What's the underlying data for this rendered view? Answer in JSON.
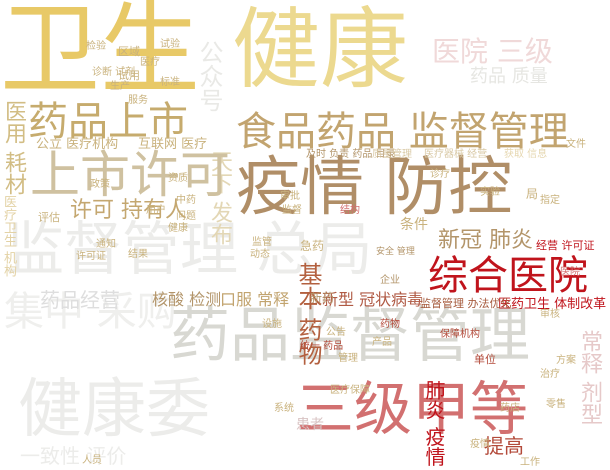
{
  "palette": {
    "gold": "#e6c66a",
    "gold_light": "#ecd98f",
    "brown": "#b3956a",
    "khaki": "#c9b27d",
    "red_dark": "#c0141c",
    "red": "#d54a4a",
    "rose": "#e3a0a0",
    "pale_rose": "#f1d6d6",
    "gray": "#c9c9c4",
    "light_gray": "#e9e9e6",
    "faint": "#f1f1ef"
  },
  "words": {
    "weisheng": "卫生",
    "jiankang": "健康",
    "yaopin_shangshi": "药品上市",
    "shipin_yaopin_jiandu": "食品药品 监督管理",
    "yiqing_fangkong": "疫情 防控",
    "shangshi_xuke": "上市许可",
    "jiandu_guanli_zongju": "监督管理 总局",
    "zonghe_yiyuan": "综合医院",
    "yaopin_jiandu_guanli": "药品监督管理",
    "sanji_jiadeng": "三级甲等",
    "jiankang_wei": "健康委",
    "jizhong_caigou": "集中 采购",
    "yiyuan_sanji": "医院 三级",
    "xinguan_feiyan": "新冠 肺炎",
    "xinxing_guanzhuang": "新型 冠状病毒",
    "hesuan_jiance": "核酸 检测",
    "koufu_changshi": "口服 常释",
    "jiben_yaowu": "基本 药物",
    "xuke_chiyouren": "许可 持有人",
    "yiyao_weisheng_tizhi": "医药卫生 体制改革",
    "jiandu_banfa": "监督管理 办法优化",
    "tigao": "提高",
    "yiyong_haocai": "医用 耗材",
    "gonggong_yiliao": "公立 医疗机构",
    "hulianwang_yiliao": "互联网 医疗",
    "gonghao": "公众号",
    "tianxia_fabu": "天下 发布",
    "yaopin_zhiliang": "药品 质量",
    "yaopin_jingying": "药品经营",
    "huanzhe": "患者",
    "yizhixing_pingjia": "一致性 评价",
    "feiyan_yiqing": "肺炎 疫情",
    "changshi_jixing": "常释 剂型",
    "jiyao": "急药",
    "shiyong": "试用",
    "tiaojian": "条件",
    "jingying_xukezheng": "经营 许可证",
    "jishi_fuze": "及时 负责 药品 目录",
    "zhenduan_shiji": "诊断 试剂",
    "yiyao_zhenduan": "医疗器械 经营",
    "quyu": "区域",
    "anquan": "安全 管理",
    "huoqu": "获取 信息",
    "yiliao_baozhang": "医疗保障",
    "weisheng_jiankang": "医疗卫生 机构",
    "pinggu": "评估",
    "danwei": "单位",
    "tongyi": "统一 药品",
    "xinyao": "新药",
    "shenhe": "审核",
    "shengchan": "生产",
    "yiyuan": "医院",
    "sheshi": "设施",
    "lingshou": "零售",
    "zhiliang_guanli": "质量管理",
    "zhongyao": "中药",
    "dongtai": "动态",
    "yonghu": "用户",
    "fuwu": "服务",
    "jiandu": "监督",
    "xukezheng": "许可证",
    "yaodian": "药店",
    "jianyan": "检验",
    "tongzhi": "通知",
    "chanpin": "产品",
    "zhiding": "指定",
    "jiegou": "结构",
    "gonggao": "公告",
    "shiyan": "试验",
    "yiliao": "医疗",
    "baozhang": "保障",
    "jigou": "机构",
    "qiye": "企业",
    "yaowu": "药物",
    "zhiliao": "治疗",
    "fangan": "方案",
    "zhengce": "政策",
    "biaozhun": "标准",
    "guanli": "管理",
    "jianguan": "监管",
    "zhenliao": "诊疗",
    "ju": "局",
    "shiyan2": "实验",
    "xitong": "系统",
    "zizhi": "资质",
    "jieguo": "结果",
    "yiqing2": "疫情",
    "gongzuo": "工作",
    "renyuan": "人员",
    "jiankang2": "健康",
    "wenti": "问题",
    "wenjian": "文件",
    "shenpi": "审批"
  }
}
